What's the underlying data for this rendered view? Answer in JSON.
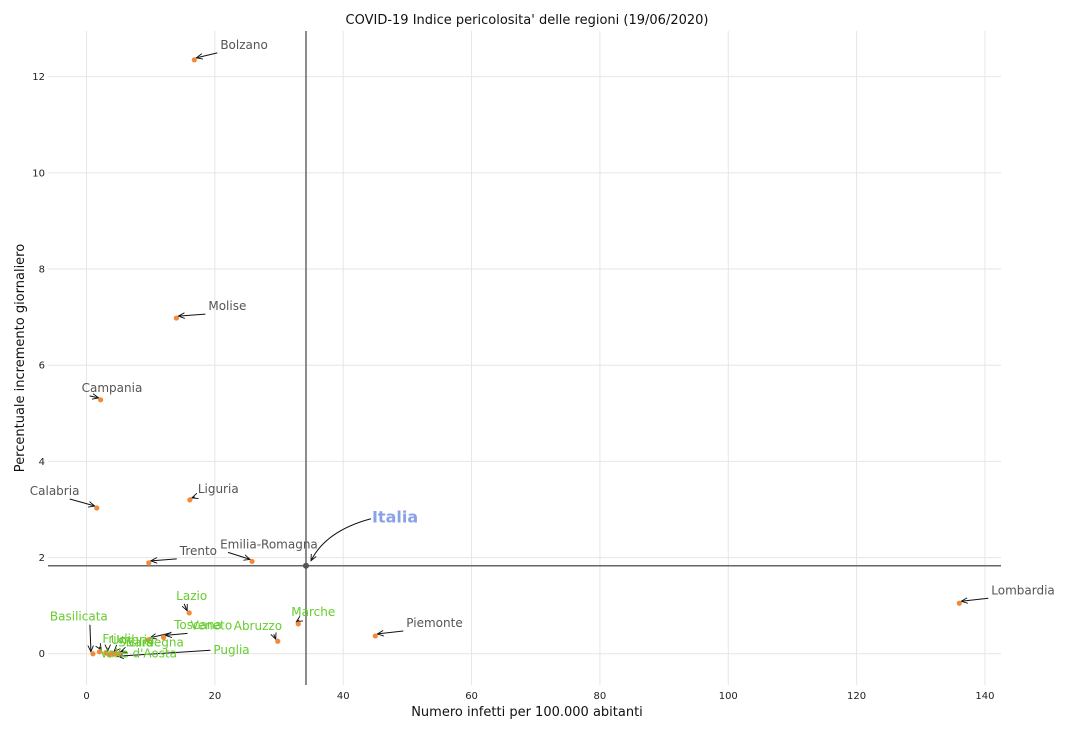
{
  "chart_data": {
    "type": "scatter",
    "title": "COVID-19 Indice pericolosita' delle regioni (19/06/2020)",
    "xlabel": "Numero infetti per 100.000 abitanti",
    "ylabel": "Percentuale incremento giornaliero",
    "xlim": [
      -6,
      142.5
    ],
    "ylim": [
      -0.65,
      12.95
    ],
    "xticks": [
      "0",
      "20",
      "40",
      "60",
      "80",
      "100",
      "120",
      "140"
    ],
    "yticks": [
      "0",
      "2",
      "4",
      "6",
      "8",
      "10",
      "12"
    ],
    "grid": true,
    "reference_lines": {
      "x": 34.2,
      "y": 1.83
    },
    "colors": {
      "point": "#f28a3a",
      "label_high": "#555555",
      "label_low": "#66cc2e",
      "reference": "#666666",
      "italia": "#8aa1ea",
      "grid": "#e6e6e6"
    },
    "points": [
      {
        "name": "Bolzano",
        "x": 16.8,
        "y": 12.35,
        "group": "high"
      },
      {
        "name": "Molise",
        "x": 14.0,
        "y": 6.98,
        "group": "high"
      },
      {
        "name": "Campania",
        "x": 2.2,
        "y": 5.28,
        "group": "high"
      },
      {
        "name": "Calabria",
        "x": 1.6,
        "y": 3.03,
        "group": "high"
      },
      {
        "name": "Liguria",
        "x": 16.1,
        "y": 3.2,
        "group": "high"
      },
      {
        "name": "Trento",
        "x": 9.7,
        "y": 1.89,
        "group": "high"
      },
      {
        "name": "Emilia-Romagna",
        "x": 25.8,
        "y": 1.92,
        "group": "high"
      },
      {
        "name": "Lombardia",
        "x": 136.0,
        "y": 1.05,
        "group": "high"
      },
      {
        "name": "Piemonte",
        "x": 45.0,
        "y": 0.37,
        "group": "high"
      },
      {
        "name": "Lazio",
        "x": 16.0,
        "y": 0.85,
        "group": "low"
      },
      {
        "name": "Marche",
        "x": 33.0,
        "y": 0.62,
        "group": "low"
      },
      {
        "name": "Abruzzo",
        "x": 29.8,
        "y": 0.26,
        "group": "low"
      },
      {
        "name": "Veneto",
        "x": 12.0,
        "y": 0.34,
        "group": "low"
      },
      {
        "name": "Toscana",
        "x": 9.6,
        "y": 0.29,
        "group": "low"
      },
      {
        "name": "Basilicata",
        "x": 1.0,
        "y": 0.0,
        "group": "low"
      },
      {
        "name": "Friuli",
        "x": 2.0,
        "y": 0.04,
        "group": "low"
      },
      {
        "name": "Umbria",
        "x": 3.0,
        "y": 0.02,
        "group": "low"
      },
      {
        "name": "Sicilia",
        "x": 4.0,
        "y": 0.01,
        "group": "low"
      },
      {
        "name": "Sardegna",
        "x": 5.0,
        "y": 0.0,
        "group": "low"
      },
      {
        "name": "Valle d'Aosta",
        "x": 3.5,
        "y": -0.02,
        "group": "low"
      },
      {
        "name": "Puglia",
        "x": 4.5,
        "y": -0.01,
        "group": "low"
      }
    ],
    "italia": {
      "name": "Italia",
      "x": 34.2,
      "y": 1.83
    }
  }
}
